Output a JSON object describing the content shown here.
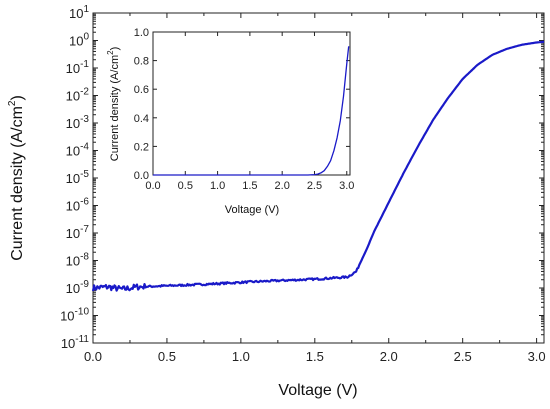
{
  "chart_data": [
    {
      "type": "line",
      "xlabel": "Voltage (V)",
      "ylabel": "Current density (A/cm",
      "ylabel_sup": "2",
      "ylabel_close": ")",
      "xlim": [
        0.0,
        3.05
      ],
      "ylim": [
        1e-11,
        10
      ],
      "yscale": "log",
      "grid": false,
      "x_ticks": [
        "0.0",
        "0.5",
        "1.0",
        "1.5",
        "2.0",
        "2.5",
        "3.0"
      ],
      "y_ticks": [
        {
          "base": "10",
          "exp": "1"
        },
        {
          "base": "10",
          "exp": "0"
        },
        {
          "base": "10",
          "exp": "-1"
        },
        {
          "base": "10",
          "exp": "-2"
        },
        {
          "base": "10",
          "exp": "-3"
        },
        {
          "base": "10",
          "exp": "-4"
        },
        {
          "base": "10",
          "exp": "-5"
        },
        {
          "base": "10",
          "exp": "-6"
        },
        {
          "base": "10",
          "exp": "-7"
        },
        {
          "base": "10",
          "exp": "-8"
        },
        {
          "base": "10",
          "exp": "-9"
        },
        {
          "base": "10",
          "exp": "-10"
        },
        {
          "base": "10",
          "exp": "-11"
        }
      ],
      "series": [
        {
          "color": "#1a1ac8",
          "x": [
            0.0,
            0.1,
            0.2,
            0.3,
            0.5,
            0.8,
            1.0,
            1.2,
            1.5,
            1.72,
            1.78,
            1.85,
            1.9,
            2.0,
            2.1,
            2.2,
            2.3,
            2.4,
            2.5,
            2.6,
            2.7,
            2.8,
            2.9,
            3.0,
            3.05
          ],
          "y": [
            1e-09,
            1.1e-09,
            9e-10,
            1.1e-09,
            1.2e-09,
            1.4e-09,
            1.6e-09,
            1.8e-09,
            2.1e-09,
            2.5e-09,
            4e-09,
            2.5e-08,
            1.1e-07,
            1.3e-06,
            1.5e-05,
            0.00015,
            0.0013,
            0.008,
            0.04,
            0.13,
            0.3,
            0.5,
            0.7,
            0.85,
            0.9
          ]
        }
      ]
    },
    {
      "type": "line",
      "xlabel": "Voltage (V)",
      "ylabel": "Current density (A/cm",
      "ylabel_sup": "2",
      "ylabel_close": ")",
      "xlim": [
        0.0,
        3.05
      ],
      "ylim": [
        0.0,
        1.0
      ],
      "grid": false,
      "x_ticks": [
        "0.0",
        "0.5",
        "1.0",
        "1.5",
        "2.0",
        "2.5",
        "3.0"
      ],
      "y_ticks": [
        "0.0",
        "0.2",
        "0.4",
        "0.6",
        "0.8",
        "1.0"
      ],
      "series": [
        {
          "color": "#1a1ac8",
          "x": [
            0.0,
            1.0,
            2.0,
            2.4,
            2.5,
            2.55,
            2.6,
            2.65,
            2.7,
            2.75,
            2.8,
            2.85,
            2.9,
            2.95,
            3.0,
            3.03
          ],
          "y": [
            0.0,
            0.0,
            0.0,
            0.0,
            0.003,
            0.006,
            0.015,
            0.03,
            0.06,
            0.1,
            0.17,
            0.26,
            0.38,
            0.55,
            0.78,
            0.9
          ]
        }
      ]
    }
  ]
}
